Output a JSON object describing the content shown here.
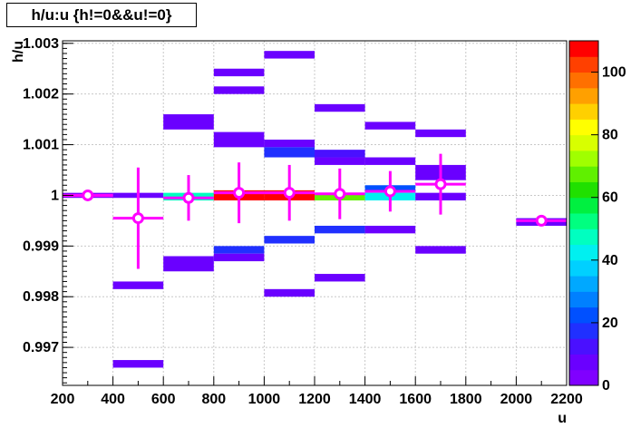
{
  "chart_data": {
    "type": "heatmap",
    "title": "h/u:u {h!=0&&u!=0}",
    "xlabel": "u",
    "ylabel": "h/u",
    "xlim": [
      200,
      2200
    ],
    "ylim": [
      0.99625,
      1.00305
    ],
    "x_ticks": [
      200,
      400,
      600,
      800,
      1000,
      1200,
      1400,
      1600,
      1800,
      2000,
      2200
    ],
    "x_tick_labels": [
      "200",
      "400",
      "600",
      "800",
      "1000",
      "1200",
      "1400",
      "1600",
      "1800",
      "2000",
      "2200"
    ],
    "y_ticks": [
      0.997,
      0.998,
      0.999,
      1.0,
      1.001,
      1.002,
      1.003
    ],
    "y_tick_labels": [
      "0.997",
      "0.998",
      "0.999",
      "1",
      "1.001",
      "1.002",
      "1.003"
    ],
    "grid": true,
    "colorbar": {
      "range": [
        0,
        110
      ],
      "ticks": [
        0,
        20,
        40,
        60,
        80,
        100
      ],
      "tick_labels": [
        "0",
        "20",
        "40",
        "60",
        "80",
        "100"
      ]
    },
    "cells": [
      {
        "x0": 200,
        "x1": 400,
        "y0": 0.99995,
        "y1": 1.00005,
        "count": 4
      },
      {
        "x0": 400,
        "x1": 600,
        "y0": 0.99995,
        "y1": 1.00005,
        "count": 6
      },
      {
        "x0": 400,
        "x1": 600,
        "y0": 0.99815,
        "y1": 0.9983,
        "count": 5
      },
      {
        "x0": 400,
        "x1": 600,
        "y0": 0.9966,
        "y1": 0.99675,
        "count": 5
      },
      {
        "x0": 600,
        "x1": 800,
        "y0": 1.0013,
        "y1": 1.0016,
        "count": 5
      },
      {
        "x0": 600,
        "x1": 800,
        "y0": 0.9999,
        "y1": 1.00005,
        "count": 45
      },
      {
        "x0": 600,
        "x1": 800,
        "y0": 0.9985,
        "y1": 0.9988,
        "count": 5
      },
      {
        "x0": 800,
        "x1": 1000,
        "y0": 1.00235,
        "y1": 1.0025,
        "count": 5
      },
      {
        "x0": 800,
        "x1": 1000,
        "y0": 1.002,
        "y1": 1.00215,
        "count": 5
      },
      {
        "x0": 800,
        "x1": 1000,
        "y0": 1.00095,
        "y1": 1.00125,
        "count": 7
      },
      {
        "x0": 800,
        "x1": 1000,
        "y0": 0.9999,
        "y1": 1.0001,
        "count": 108
      },
      {
        "x0": 800,
        "x1": 1000,
        "y0": 0.99885,
        "y1": 0.999,
        "count": 15
      },
      {
        "x0": 800,
        "x1": 1000,
        "y0": 0.9987,
        "y1": 0.99885,
        "count": 6
      },
      {
        "x0": 1000,
        "x1": 1200,
        "y0": 1.0027,
        "y1": 1.00285,
        "count": 5
      },
      {
        "x0": 1000,
        "x1": 1200,
        "y0": 1.00095,
        "y1": 1.0011,
        "count": 7
      },
      {
        "x0": 1000,
        "x1": 1200,
        "y0": 1.00075,
        "y1": 1.00095,
        "count": 18
      },
      {
        "x0": 1000,
        "x1": 1200,
        "y0": 0.9999,
        "y1": 1.0001,
        "count": 105
      },
      {
        "x0": 1000,
        "x1": 1200,
        "y0": 0.99905,
        "y1": 0.9992,
        "count": 15
      },
      {
        "x0": 1000,
        "x1": 1200,
        "y0": 0.998,
        "y1": 0.99815,
        "count": 5
      },
      {
        "x0": 1200,
        "x1": 1400,
        "y0": 1.00165,
        "y1": 1.0018,
        "count": 5
      },
      {
        "x0": 1200,
        "x1": 1400,
        "y0": 1.00075,
        "y1": 1.0009,
        "count": 12
      },
      {
        "x0": 1200,
        "x1": 1400,
        "y0": 1.0006,
        "y1": 1.00075,
        "count": 7
      },
      {
        "x0": 1200,
        "x1": 1400,
        "y0": 0.9999,
        "y1": 1.00005,
        "count": 65
      },
      {
        "x0": 1200,
        "x1": 1400,
        "y0": 0.99925,
        "y1": 0.9994,
        "count": 15
      },
      {
        "x0": 1200,
        "x1": 1400,
        "y0": 0.9983,
        "y1": 0.99845,
        "count": 5
      },
      {
        "x0": 1400,
        "x1": 1600,
        "y0": 1.0013,
        "y1": 1.00145,
        "count": 5
      },
      {
        "x0": 1400,
        "x1": 1600,
        "y0": 1.0006,
        "y1": 1.00075,
        "count": 8
      },
      {
        "x0": 1400,
        "x1": 1600,
        "y0": 1.00005,
        "y1": 1.0002,
        "count": 22
      },
      {
        "x0": 1400,
        "x1": 1600,
        "y0": 0.9999,
        "y1": 1.00005,
        "count": 42
      },
      {
        "x0": 1400,
        "x1": 1600,
        "y0": 0.99925,
        "y1": 0.9994,
        "count": 6
      },
      {
        "x0": 1600,
        "x1": 1800,
        "y0": 1.00115,
        "y1": 1.0013,
        "count": 5
      },
      {
        "x0": 1600,
        "x1": 1800,
        "y0": 1.0003,
        "y1": 1.0006,
        "count": 7
      },
      {
        "x0": 1600,
        "x1": 1800,
        "y0": 0.9999,
        "y1": 1.00005,
        "count": 8
      },
      {
        "x0": 1600,
        "x1": 1800,
        "y0": 0.99885,
        "y1": 0.999,
        "count": 5
      },
      {
        "x0": 2000,
        "x1": 2200,
        "y0": 0.9994,
        "y1": 0.99955,
        "count": 5
      }
    ],
    "profile_points": [
      {
        "x": 300,
        "y": 1.0,
        "xerr": 100,
        "yerr": 3e-05
      },
      {
        "x": 500,
        "y": 0.99955,
        "xerr": 100,
        "yerr": 0.001
      },
      {
        "x": 700,
        "y": 0.99995,
        "xerr": 100,
        "yerr": 0.00045
      },
      {
        "x": 900,
        "y": 1.00005,
        "xerr": 100,
        "yerr": 0.0006
      },
      {
        "x": 1100,
        "y": 1.00005,
        "xerr": 100,
        "yerr": 0.00055
      },
      {
        "x": 1300,
        "y": 1.00003,
        "xerr": 100,
        "yerr": 0.0005
      },
      {
        "x": 1500,
        "y": 1.00008,
        "xerr": 100,
        "yerr": 0.0004
      },
      {
        "x": 1700,
        "y": 1.00022,
        "xerr": 100,
        "yerr": 0.0006
      },
      {
        "x": 2100,
        "y": 0.9995,
        "xerr": 100,
        "yerr": 3e-05
      }
    ],
    "colors": {
      "marker": "#ff00ff",
      "grid": "#c8c8c8",
      "palette": [
        "#8000ff",
        "#6a00ff",
        "#4a10ff",
        "#2030ff",
        "#0050ff",
        "#0080ff",
        "#00a8ff",
        "#00d0ff",
        "#00f0f0",
        "#00ffc0",
        "#00ff80",
        "#00f040",
        "#20e000",
        "#60f000",
        "#a0ff00",
        "#d8ff00",
        "#ffff00",
        "#ffd000",
        "#ffa000",
        "#ff7000",
        "#ff4000",
        "#ff0000"
      ]
    }
  }
}
